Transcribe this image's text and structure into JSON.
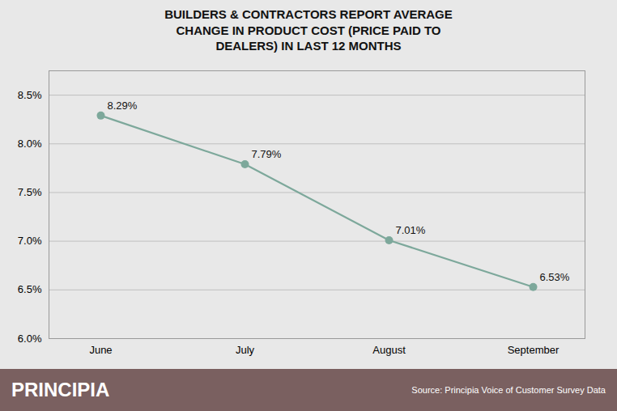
{
  "chart_data": {
    "type": "line",
    "title": "BUILDERS & CONTRACTORS REPORT AVERAGE\nCHANGE IN PRODUCT COST (PRICE PAID TO\nDEALERS) IN LAST 12 MONTHS",
    "categories": [
      "June",
      "July",
      "August",
      "September"
    ],
    "values": [
      8.29,
      7.79,
      7.01,
      6.53
    ],
    "value_labels": [
      "8.29%",
      "7.79%",
      "7.01%",
      "6.53%"
    ],
    "data_labels": true,
    "color": "#7da89b",
    "marker": "circle",
    "ylim": [
      6.0,
      8.75
    ],
    "yticks": [
      {
        "value": 6.0,
        "label": "6.0%"
      },
      {
        "value": 6.5,
        "label": "6.5%"
      },
      {
        "value": 7.0,
        "label": "7.0%"
      },
      {
        "value": 7.5,
        "label": "7.5%"
      },
      {
        "value": 8.0,
        "label": "8.0%"
      },
      {
        "value": 8.5,
        "label": "8.5%"
      }
    ],
    "grid": true,
    "annotations": [
      "PRINCIPIA",
      "Source: Principia Voice of Customer Survey Data"
    ]
  }
}
